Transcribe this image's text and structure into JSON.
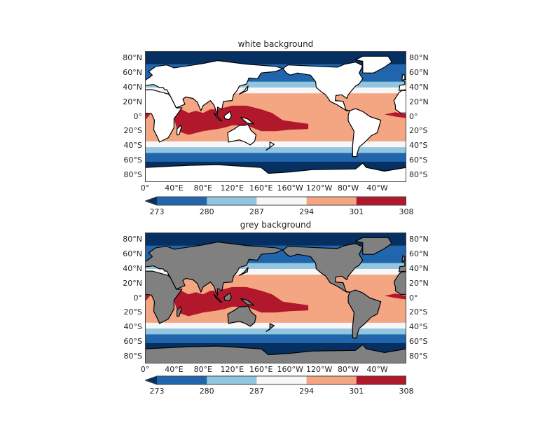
{
  "panels": [
    {
      "title": "white background",
      "land_color": "#ffffff"
    },
    {
      "title": "grey background",
      "land_color": "#808080"
    }
  ],
  "lat_labels": [
    "80°N",
    "60°N",
    "40°N",
    "20°N",
    "0°",
    "20°S",
    "40°S",
    "60°S",
    "80°S"
  ],
  "lat_values": [
    80,
    60,
    40,
    20,
    0,
    -20,
    -40,
    -60,
    -80
  ],
  "lon_labels": [
    "0°",
    "40°E",
    "80°E",
    "120°E",
    "160°E",
    "160°W",
    "120°W",
    "80°W",
    "40°W"
  ],
  "lon_values": [
    0,
    40,
    80,
    120,
    160,
    200,
    240,
    280,
    320
  ],
  "colorbar": {
    "ticks": [
      "273",
      "280",
      "287",
      "294",
      "301",
      "308"
    ],
    "levels": [
      273,
      280,
      287,
      294,
      301,
      308
    ],
    "colors": [
      "#2166ac",
      "#92c5de",
      "#f7f7f7",
      "#f4a582",
      "#b2182b"
    ],
    "extend_min_color": "#053061"
  }
}
